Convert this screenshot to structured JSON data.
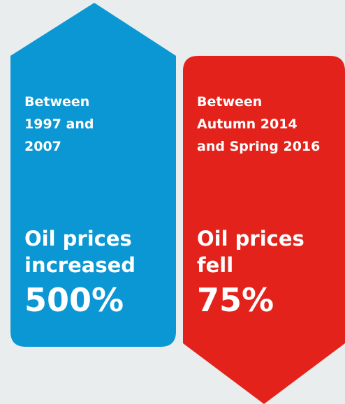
{
  "panels": [
    {
      "period": [
        "Between",
        "1997 and",
        "2007"
      ],
      "statement": [
        "Oil prices",
        "increased"
      ],
      "figure": "500%"
    },
    {
      "period": [
        "Between",
        "Autumn 2014",
        "and Spring 2016"
      ],
      "statement": [
        "Oil prices",
        "fell"
      ],
      "figure": "75%"
    }
  ]
}
